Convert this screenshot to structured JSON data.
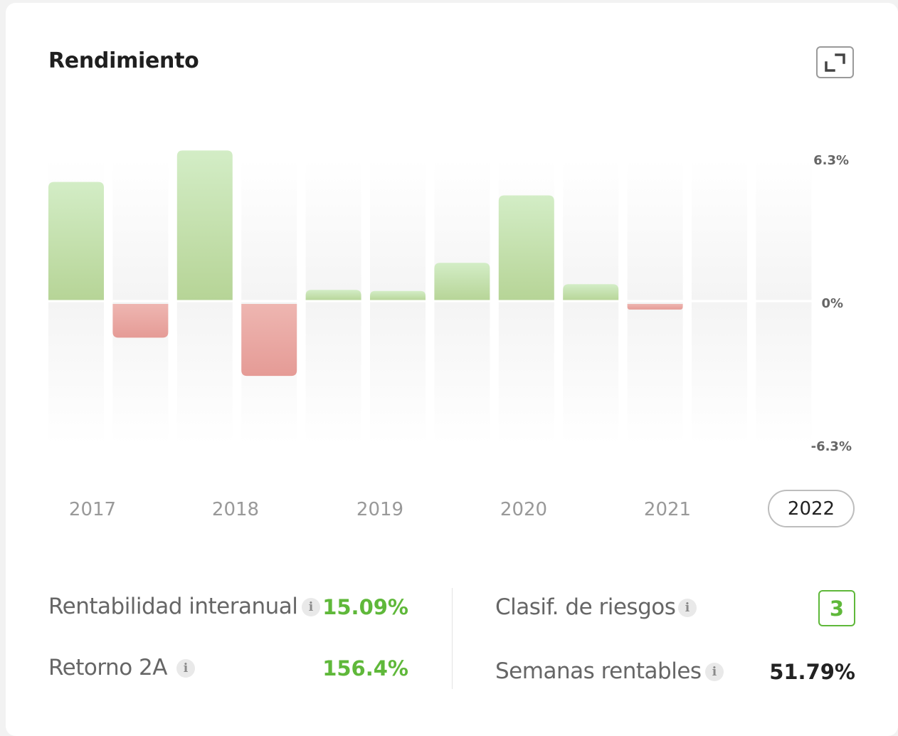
{
  "title": "Rendimiento",
  "colors": {
    "positive": "#b8d79a",
    "negative": "#e8a19c",
    "accent_green": "#5fb83a"
  },
  "chart_data": {
    "type": "bar",
    "ylim": [
      -6.3,
      6.3
    ],
    "y_ticks": [
      "6.3%",
      "0%",
      "-6.3%"
    ],
    "values": [
      5.3,
      -1.5,
      6.7,
      -3.2,
      0.5,
      0.45,
      1.7,
      4.7,
      0.75,
      -0.25,
      0,
      0
    ],
    "year_labels": [
      "2017",
      "2018",
      "2019",
      "2020",
      "2021"
    ],
    "selected_year": "2022",
    "grid": false
  },
  "stats": {
    "rentabilidad_label": "Rentabilidad interanual",
    "rentabilidad_value": "15.09%",
    "retorno_label": "Retorno 2A",
    "retorno_value": "156.4%",
    "riesgo_label": "Clasif. de riesgos",
    "riesgo_value": "3",
    "semanas_label": "Semanas rentables",
    "semanas_value": "51.79%",
    "info_glyph": "i"
  }
}
